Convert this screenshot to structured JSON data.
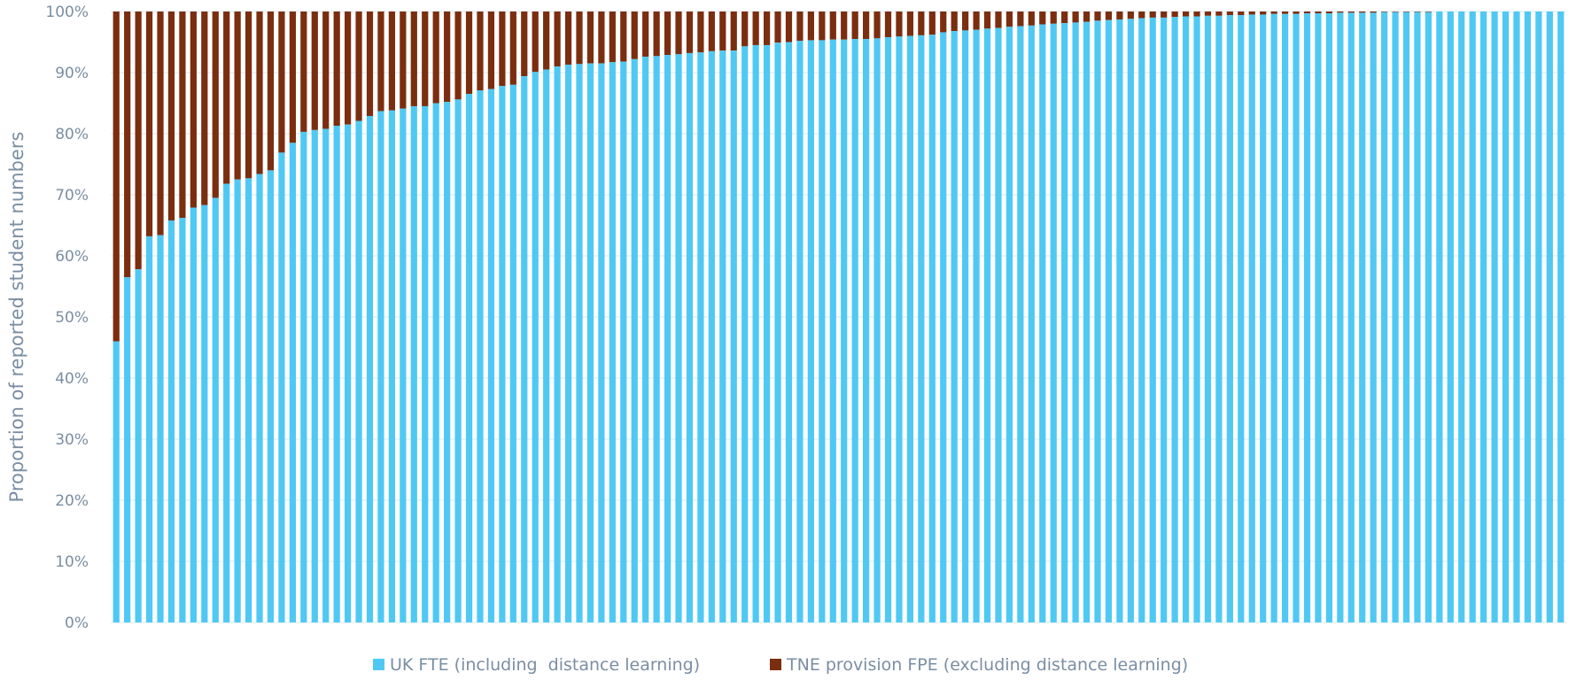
{
  "chart_data": {
    "type": "bar",
    "stacked": true,
    "ylabel": "Proportion of reported student numbers",
    "xlabel": "",
    "ylim": [
      0,
      100
    ],
    "y_ticks": [
      "0%",
      "10%",
      "20%",
      "30%",
      "40%",
      "50%",
      "60%",
      "70%",
      "80%",
      "90%",
      "100%"
    ],
    "grid": true,
    "legend_position": "bottom",
    "colors": {
      "uk": "#4fc9f4",
      "tne": "#7b2e0f",
      "grid": "#d9e7f1",
      "text": "#7a8ea3"
    },
    "series": [
      {
        "name": "UK FTE (including  distance learning)",
        "values": [
          46.0,
          56.5,
          57.8,
          63.2,
          63.4,
          65.8,
          66.2,
          67.9,
          68.3,
          69.5,
          71.8,
          72.5,
          72.7,
          73.4,
          74.0,
          76.9,
          78.5,
          80.3,
          80.6,
          80.8,
          81.3,
          81.5,
          82.1,
          82.9,
          83.7,
          83.8,
          84.1,
          84.5,
          84.5,
          85.0,
          85.2,
          85.6,
          86.5,
          87.1,
          87.3,
          87.8,
          88.0,
          89.4,
          90.1,
          90.5,
          91.0,
          91.3,
          91.4,
          91.5,
          91.5,
          91.7,
          91.8,
          92.2,
          92.6,
          92.7,
          92.9,
          93.0,
          93.2,
          93.3,
          93.5,
          93.6,
          93.6,
          94.3,
          94.5,
          94.5,
          94.9,
          95.0,
          95.2,
          95.3,
          95.3,
          95.4,
          95.4,
          95.5,
          95.5,
          95.6,
          95.8,
          95.9,
          96.0,
          96.1,
          96.2,
          96.6,
          96.8,
          96.9,
          97.0,
          97.2,
          97.3,
          97.5,
          97.6,
          97.7,
          97.9,
          98.0,
          98.1,
          98.2,
          98.3,
          98.5,
          98.6,
          98.7,
          98.8,
          98.9,
          99.0,
          99.0,
          99.1,
          99.2,
          99.2,
          99.3,
          99.3,
          99.4,
          99.4,
          99.5,
          99.5,
          99.6,
          99.6,
          99.6,
          99.7,
          99.7,
          99.7,
          99.8,
          99.8,
          99.8,
          99.8,
          99.9,
          99.9,
          99.9,
          99.9,
          99.9,
          100.0,
          100.0,
          100.0,
          100.0,
          100.0,
          100.0,
          100.0,
          100.0,
          100.0,
          100.0,
          100.0,
          100.0
        ]
      },
      {
        "name": "TNE provision FPE (excluding distance learning)",
        "values": "remainder to 100%"
      }
    ]
  }
}
